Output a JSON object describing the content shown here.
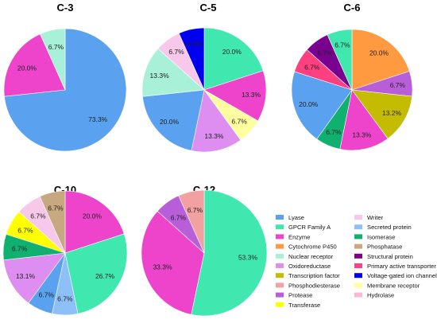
{
  "chart_data": [
    {
      "type": "pie",
      "title": "C-3",
      "slices": [
        {
          "category": "Lyase",
          "value": 73.3,
          "label": "73.3%"
        },
        {
          "category": "Enzyme",
          "value": 20.0,
          "label": "20.0%"
        },
        {
          "category": "Nuclear receptor",
          "value": 6.7,
          "label": "6.7%"
        }
      ]
    },
    {
      "type": "pie",
      "title": "C-5",
      "slices": [
        {
          "category": "GPCR Family A",
          "value": 20.0,
          "label": "20.0%"
        },
        {
          "category": "Enzyme",
          "value": 13.3,
          "label": "13.3%"
        },
        {
          "category": "Membrane receptor",
          "value": 6.7,
          "label": "6.7%"
        },
        {
          "category": "Oxidoreductase",
          "value": 13.3,
          "label": "13.3%"
        },
        {
          "category": "Lyase",
          "value": 20.0,
          "label": "20.0%"
        },
        {
          "category": "Nuclear receptor",
          "value": 13.3,
          "label": "13.3%"
        },
        {
          "category": "Writer",
          "value": 6.7,
          "label": "6.7%"
        },
        {
          "category": "Voltage-gated ion channel",
          "value": 6.7,
          "label": "6.7%"
        }
      ]
    },
    {
      "type": "pie",
      "title": "C-6",
      "slices": [
        {
          "category": "Cytochrome P450",
          "value": 20.0,
          "label": "20.0%"
        },
        {
          "category": "Protease",
          "value": 6.7,
          "label": "6.7%"
        },
        {
          "category": "Transcription factor",
          "value": 13.2,
          "label": "13.2%"
        },
        {
          "category": "Enzyme",
          "value": 13.3,
          "label": "13.3%"
        },
        {
          "category": "Isomerase",
          "value": 6.7,
          "label": "6.7%"
        },
        {
          "category": "Lyase",
          "value": 20.0,
          "label": "20.0%"
        },
        {
          "category": "Primary active transporter",
          "value": 6.7,
          "label": "6.7%"
        },
        {
          "category": "Structural protein",
          "value": 6.7,
          "label": "6.7%"
        },
        {
          "category": "GPCR Family A",
          "value": 6.7,
          "label": "6.7%"
        }
      ]
    },
    {
      "type": "pie",
      "title": "C-10",
      "slices": [
        {
          "category": "Enzyme",
          "value": 20.0,
          "label": "20.0%"
        },
        {
          "category": "GPCR Family A",
          "value": 26.7,
          "label": "26.7%"
        },
        {
          "category": "Secreted protein",
          "value": 6.7,
          "label": "6.7%"
        },
        {
          "category": "Lyase",
          "value": 6.7,
          "label": "6.7%"
        },
        {
          "category": "Oxidoreductase",
          "value": 13.1,
          "label": "13.1%"
        },
        {
          "category": "Isomerase",
          "value": 6.7,
          "label": "6.7%"
        },
        {
          "category": "Transferase",
          "value": 6.7,
          "label": "6.7%"
        },
        {
          "category": "Writer",
          "value": 6.7,
          "label": "6.7%"
        },
        {
          "category": "Phosphatase",
          "value": 6.7,
          "label": "6.7%"
        }
      ]
    },
    {
      "type": "pie",
      "title": "C-12",
      "slices": [
        {
          "category": "GPCR Family A",
          "value": 53.3,
          "label": "53.3%"
        },
        {
          "category": "Enzyme",
          "value": 33.3,
          "label": "33.3%"
        },
        {
          "category": "Protease",
          "value": 6.7,
          "label": "6.7%"
        },
        {
          "category": "Phosphodiesterase",
          "value": 6.7,
          "label": "6.7%"
        }
      ]
    }
  ],
  "legend": [
    {
      "name": "Lyase",
      "color": "#5aa2f0"
    },
    {
      "name": "GPCR Family A",
      "color": "#40e8b0"
    },
    {
      "name": "Enzyme",
      "color": "#ee44cc"
    },
    {
      "name": "Cytochrome P450",
      "color": "#ff9a40"
    },
    {
      "name": "Nuclear receptor",
      "color": "#a8f0d8"
    },
    {
      "name": "Oxidoreductase",
      "color": "#dd8ef0"
    },
    {
      "name": "Transcription factor",
      "color": "#c4bc00"
    },
    {
      "name": "Phosphodiesterase",
      "color": "#f2a0a0"
    },
    {
      "name": "Protease",
      "color": "#b85ed8"
    },
    {
      "name": "Transferase",
      "color": "#ffff00"
    },
    {
      "name": "Writer",
      "color": "#f8c8ea"
    },
    {
      "name": "Secreted protein",
      "color": "#8ec0f8"
    },
    {
      "name": "Isomerase",
      "color": "#10b070"
    },
    {
      "name": "Phosphatase",
      "color": "#c8a880"
    },
    {
      "name": "Structural protein",
      "color": "#7a0090"
    },
    {
      "name": "Primary active transporter",
      "color": "#ff4080"
    },
    {
      "name": "Voltage-gated ion channel",
      "color": "#0000ee"
    },
    {
      "name": "Membrane receptor",
      "color": "#ffffa0"
    },
    {
      "name": "Hydrolase",
      "color": "#f8b8d8"
    }
  ]
}
